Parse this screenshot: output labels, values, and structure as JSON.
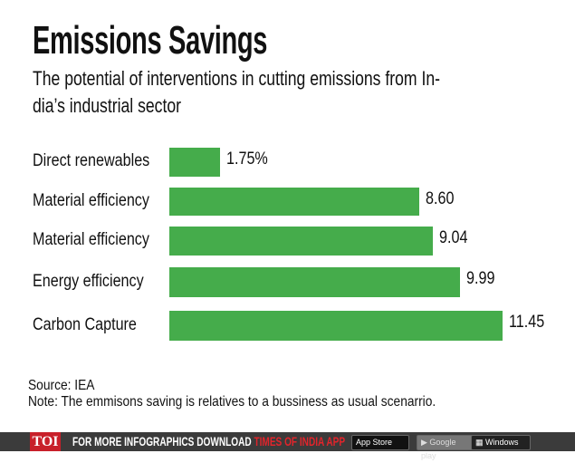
{
  "header": {
    "title": "Emissions Savings",
    "subtitle_line1": "The potential of interventions in cutting emissions from In-",
    "subtitle_line2": "dia’s industrial sector"
  },
  "chart_data": {
    "type": "bar",
    "orientation": "horizontal",
    "categories": [
      "Direct renewables",
      "Material efficiency",
      "Material efficiency",
      "Energy efficiency",
      "Carbon Capture"
    ],
    "values": [
      1.75,
      8.6,
      9.04,
      9.99,
      11.45
    ],
    "value_labels": [
      "1.75%",
      "8.60",
      "9.04",
      "9.99",
      "11.45"
    ],
    "title": "Emissions Savings",
    "bar_color": "#45ac4b",
    "grid": false
  },
  "footer": {
    "source": "Source: IEA",
    "note": "Note: The emmisons saving is relatives to a bussiness as usual scenarrio."
  },
  "banner": {
    "logo": "TOI",
    "promo": "FOR MORE  INFOGRAPHICS DOWNLOAD ",
    "promo_app": "TIMES OF INDIA  APP",
    "appstore": " App Store",
    "gplay": "▶ Google play",
    "winphone": "▦ Windows Phone",
    "brand_red": "#c8202a",
    "bg": "#3b3b3b"
  }
}
